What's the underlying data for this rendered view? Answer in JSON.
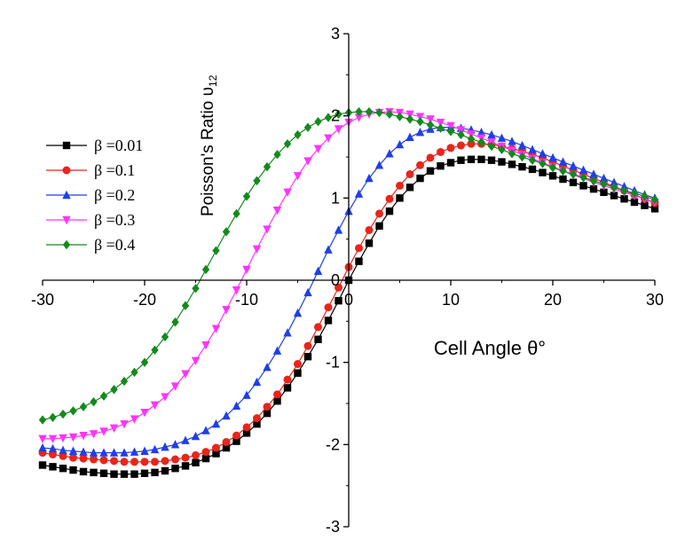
{
  "chart_data": {
    "type": "line",
    "xlabel": "Cell Angle  θ°",
    "ylabel_main": "Poisson's Ratio  υ",
    "ylabel_sub": "12",
    "xlim": [
      -30,
      30
    ],
    "ylim": [
      -3,
      3
    ],
    "x_ticks": [
      -30,
      -20,
      -10,
      0,
      10,
      20,
      30
    ],
    "x_tick_labels": [
      "-30",
      "-20",
      "-10",
      "0",
      "10",
      "20",
      "30"
    ],
    "y_ticks": [
      -3,
      -2,
      -1,
      0,
      1,
      2,
      3
    ],
    "y_tick_labels": [
      "-3",
      "-2",
      "-1",
      "0",
      "1",
      "2",
      "3"
    ],
    "grid": false,
    "legend_position": "left",
    "x": [
      -30,
      -29,
      -28,
      -27,
      -26,
      -25,
      -24,
      -23,
      -22,
      -21,
      -20,
      -19,
      -18,
      -17,
      -16,
      -15,
      -14,
      -13,
      -12,
      -11,
      -10,
      -9,
      -8,
      -7,
      -6,
      -5,
      -4,
      -3,
      -2,
      -1,
      0,
      1,
      2,
      3,
      4,
      5,
      6,
      7,
      8,
      9,
      10,
      11,
      12,
      13,
      14,
      15,
      16,
      17,
      18,
      19,
      20,
      21,
      22,
      23,
      24,
      25,
      26,
      27,
      28,
      29,
      30
    ],
    "series": [
      {
        "name": "β =0.01",
        "color": "#000000",
        "marker": "square",
        "values": [
          -2.25,
          -2.27,
          -2.29,
          -2.31,
          -2.33,
          -2.34,
          -2.35,
          -2.36,
          -2.36,
          -2.36,
          -2.35,
          -2.34,
          -2.32,
          -2.29,
          -2.26,
          -2.22,
          -2.17,
          -2.11,
          -2.04,
          -1.96,
          -1.86,
          -1.75,
          -1.62,
          -1.47,
          -1.31,
          -1.13,
          -0.93,
          -0.72,
          -0.49,
          -0.25,
          0.0,
          0.23,
          0.45,
          0.66,
          0.84,
          1.0,
          1.13,
          1.24,
          1.33,
          1.39,
          1.43,
          1.46,
          1.47,
          1.47,
          1.46,
          1.44,
          1.41,
          1.38,
          1.35,
          1.31,
          1.27,
          1.23,
          1.19,
          1.15,
          1.11,
          1.07,
          1.03,
          0.99,
          0.95,
          0.91,
          0.87
        ]
      },
      {
        "name": "β =0.1",
        "color": "#e8251a",
        "marker": "circle",
        "values": [
          -2.1,
          -2.12,
          -2.14,
          -2.16,
          -2.17,
          -2.18,
          -2.19,
          -2.2,
          -2.21,
          -2.21,
          -2.21,
          -2.21,
          -2.2,
          -2.18,
          -2.16,
          -2.13,
          -2.09,
          -2.04,
          -1.97,
          -1.89,
          -1.79,
          -1.68,
          -1.54,
          -1.39,
          -1.21,
          -1.02,
          -0.8,
          -0.57,
          -0.33,
          -0.09,
          0.16,
          0.39,
          0.61,
          0.81,
          0.99,
          1.15,
          1.29,
          1.4,
          1.49,
          1.56,
          1.61,
          1.64,
          1.66,
          1.66,
          1.65,
          1.63,
          1.6,
          1.57,
          1.53,
          1.49,
          1.44,
          1.39,
          1.34,
          1.29,
          1.24,
          1.19,
          1.14,
          1.09,
          1.04,
          0.99,
          0.94
        ]
      },
      {
        "name": "β =0.2",
        "color": "#1f3fe6",
        "marker": "triangle-up",
        "values": [
          -2.04,
          -2.05,
          -2.07,
          -2.08,
          -2.09,
          -2.1,
          -2.1,
          -2.1,
          -2.1,
          -2.09,
          -2.08,
          -2.06,
          -2.03,
          -2.0,
          -1.95,
          -1.9,
          -1.83,
          -1.75,
          -1.65,
          -1.53,
          -1.4,
          -1.24,
          -1.06,
          -0.86,
          -0.64,
          -0.4,
          -0.15,
          0.11,
          0.37,
          0.61,
          0.84,
          1.05,
          1.24,
          1.4,
          1.54,
          1.65,
          1.74,
          1.8,
          1.84,
          1.86,
          1.86,
          1.85,
          1.83,
          1.8,
          1.77,
          1.73,
          1.69,
          1.64,
          1.59,
          1.54,
          1.49,
          1.44,
          1.39,
          1.34,
          1.29,
          1.24,
          1.19,
          1.14,
          1.09,
          1.04,
          1.0
        ]
      },
      {
        "name": "β =0.3",
        "color": "#ff33ff",
        "marker": "triangle-down",
        "values": [
          -1.93,
          -1.93,
          -1.92,
          -1.91,
          -1.89,
          -1.87,
          -1.84,
          -1.8,
          -1.75,
          -1.69,
          -1.61,
          -1.52,
          -1.42,
          -1.29,
          -1.14,
          -0.98,
          -0.79,
          -0.59,
          -0.36,
          -0.12,
          0.13,
          0.38,
          0.62,
          0.85,
          1.07,
          1.27,
          1.45,
          1.6,
          1.73,
          1.84,
          1.92,
          1.98,
          2.02,
          2.04,
          2.05,
          2.04,
          2.02,
          1.99,
          1.96,
          1.92,
          1.88,
          1.83,
          1.78,
          1.73,
          1.68,
          1.63,
          1.58,
          1.53,
          1.48,
          1.43,
          1.38,
          1.33,
          1.28,
          1.24,
          1.19,
          1.15,
          1.11,
          1.07,
          1.03,
          0.99,
          0.95
        ]
      },
      {
        "name": "β =0.4",
        "color": "#138a1c",
        "marker": "diamond",
        "values": [
          -1.7,
          -1.67,
          -1.63,
          -1.59,
          -1.54,
          -1.48,
          -1.41,
          -1.33,
          -1.23,
          -1.12,
          -1.0,
          -0.85,
          -0.69,
          -0.51,
          -0.31,
          -0.1,
          0.13,
          0.36,
          0.59,
          0.81,
          1.02,
          1.21,
          1.38,
          1.53,
          1.66,
          1.77,
          1.86,
          1.93,
          1.98,
          2.02,
          2.04,
          2.05,
          2.05,
          2.04,
          2.02,
          1.99,
          1.96,
          1.93,
          1.89,
          1.85,
          1.81,
          1.77,
          1.72,
          1.68,
          1.63,
          1.59,
          1.54,
          1.5,
          1.46,
          1.42,
          1.37,
          1.33,
          1.29,
          1.25,
          1.21,
          1.17,
          1.13,
          1.09,
          1.06,
          1.02,
          0.98
        ]
      }
    ]
  }
}
